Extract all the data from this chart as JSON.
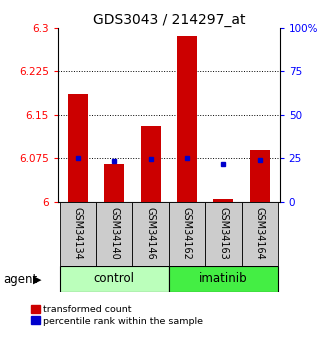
{
  "title": "GDS3043 / 214297_at",
  "categories": [
    "GSM34134",
    "GSM34140",
    "GSM34146",
    "GSM34162",
    "GSM34163",
    "GSM34164"
  ],
  "groups": [
    "control",
    "control",
    "control",
    "imatinib",
    "imatinib",
    "imatinib"
  ],
  "red_values": [
    6.185,
    6.065,
    6.13,
    6.285,
    6.005,
    6.09
  ],
  "blue_values": [
    6.075,
    6.07,
    6.073,
    6.075,
    6.065,
    6.072
  ],
  "ylim_left": [
    6.0,
    6.3
  ],
  "ylim_right": [
    0,
    100
  ],
  "yticks_left": [
    6.0,
    6.075,
    6.15,
    6.225,
    6.3
  ],
  "yticks_right": [
    0,
    25,
    50,
    75,
    100
  ],
  "ytick_labels_left": [
    "6",
    "6.075",
    "6.15",
    "6.225",
    "6.3"
  ],
  "ytick_labels_right": [
    "0",
    "25",
    "50",
    "75",
    "100%"
  ],
  "hlines": [
    6.075,
    6.15,
    6.225
  ],
  "group_colors": {
    "control": "#bbffbb",
    "imatinib": "#44ee44"
  },
  "red_color": "#cc0000",
  "blue_color": "#0000cc",
  "gray_color": "#cccccc",
  "agent_label": "agent",
  "legend_red": "transformed count",
  "legend_blue": "percentile rank within the sample",
  "left_axis_color": "red",
  "right_axis_color": "blue",
  "title_fontsize": 10,
  "tick_fontsize": 7.5,
  "xlabel_fontsize": 7,
  "label_fontsize": 8
}
